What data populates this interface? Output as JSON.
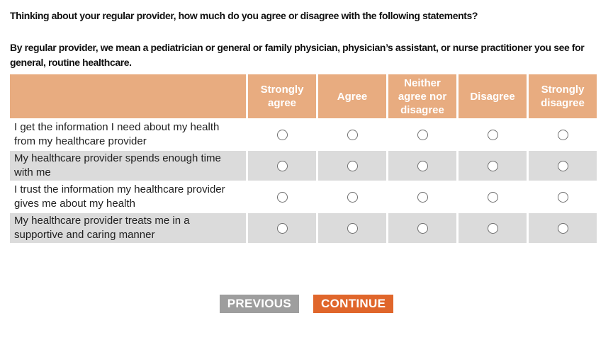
{
  "page": {
    "question_intro": "Thinking about your regular provider, how much do you agree or disagree with the following statements?",
    "question_note": "By regular provider, we mean a pediatrician or general or family physician, physician’s assistant, or nurse practitioner you see for general, routine healthcare."
  },
  "matrix": {
    "columns": [
      "Strongly agree",
      "Agree",
      "Neither agree nor disagree",
      "Disagree",
      "Strongly disagree"
    ],
    "rows": [
      {
        "label": "I get the information I need about my health from my healthcare provider",
        "selected": null
      },
      {
        "label": "My healthcare provider spends enough time with me",
        "selected": null
      },
      {
        "label": "I trust the information my healthcare provider gives me about my health",
        "selected": null
      },
      {
        "label": "My healthcare provider treats me in a supportive and caring manner",
        "selected": null
      }
    ]
  },
  "buttons": {
    "previous_label": "PREVIOUS",
    "continue_label": "CONTINUE"
  },
  "colors": {
    "header_bg": "#e8ac80",
    "row_alt_bg": "#dbdbdb",
    "previous_bg": "#9e9e9e",
    "continue_bg": "#e0662b"
  }
}
